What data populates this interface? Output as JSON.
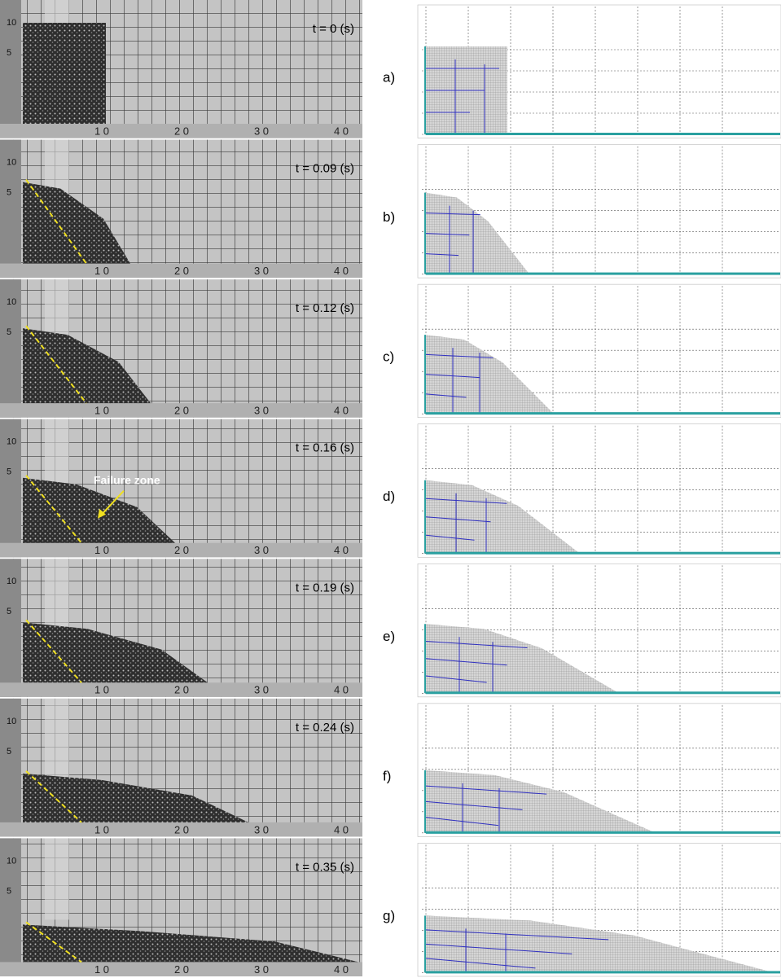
{
  "panels": [
    {
      "label": "a)",
      "time": "t = 0 (s)"
    },
    {
      "label": "b)",
      "time": "t = 0.09 (s)"
    },
    {
      "label": "c)",
      "time": "t = 0.12 (s)"
    },
    {
      "label": "d)",
      "time": "t = 0.16 (s)"
    },
    {
      "label": "e)",
      "time": "t = 0.19 (s)"
    },
    {
      "label": "f)",
      "time": "t = 0.24 (s)"
    },
    {
      "label": "g)",
      "time": "t = 0.35 (s)"
    }
  ],
  "annotation": "Failure zone",
  "ruler": {
    "left": [
      "10",
      "5"
    ],
    "bottom": [
      "1 0",
      "2 0",
      "3 0",
      "4 0"
    ]
  }
}
